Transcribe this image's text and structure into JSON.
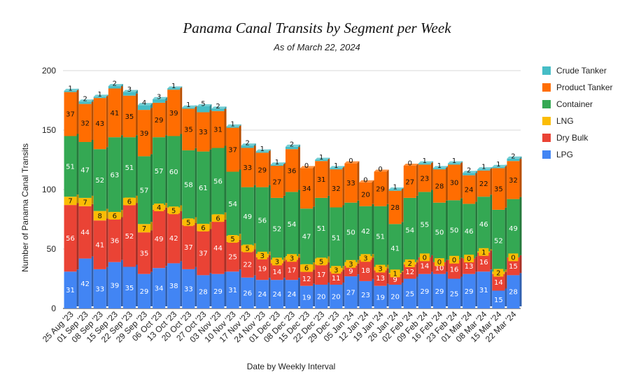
{
  "chart_data": {
    "type": "bar",
    "stacked": true,
    "title": "Panama Canal Transits by Segment per Week",
    "subtitle": "As of March 22, 2024",
    "xlabel": "Date by Weekly Interval",
    "ylabel": "Number of Panama Canal Transits",
    "ylim": [
      0,
      200
    ],
    "yticks": [
      0,
      50,
      100,
      150,
      200
    ],
    "grid": true,
    "legend_position": "right",
    "categories": [
      "25 Aug '23",
      "01 Sep '23",
      "08 Sep '23",
      "15 Sep '23",
      "22 Sep '23",
      "29 Sep '23",
      "06 Oct '23",
      "13 Oct '23",
      "20 Oct '23",
      "27 Oct '23",
      "03 Nov '23",
      "10 Nov '23",
      "17 Nov '23",
      "24 Nov '23",
      "01 Dec '23",
      "08 Dec '23",
      "15 Dec '23",
      "22 Dec '23",
      "29 Dec '23",
      "05 Jan '24",
      "12 Jan '24",
      "19 Jan '24",
      "26 Jan '24",
      "02 Feb '24",
      "09 Feb '24",
      "16 Feb '24",
      "23 Feb '24",
      "01 Mar '24",
      "08 Mar '24",
      "15 Mar '24",
      "22 Mar '24"
    ],
    "series": [
      {
        "name": "LPG",
        "color": "#4285f4",
        "values": [
          31,
          42,
          33,
          39,
          35,
          29,
          34,
          38,
          33,
          28,
          29,
          31,
          26,
          24,
          24,
          24,
          19,
          20,
          20,
          27,
          23,
          19,
          20,
          25,
          29,
          29,
          25,
          29,
          31,
          15,
          28
        ]
      },
      {
        "name": "Dry Bulk",
        "color": "#ea4335",
        "values": [
          56,
          44,
          41,
          36,
          52,
          35,
          49,
          42,
          37,
          37,
          44,
          25,
          22,
          19,
          14,
          17,
          12,
          17,
          11,
          9,
          18,
          13,
          9,
          12,
          14,
          10,
          16,
          13,
          16,
          14,
          15
        ]
      },
      {
        "name": "LNG",
        "color": "#fbbc04",
        "values": [
          7,
          7,
          8,
          6,
          6,
          7,
          4,
          5,
          5,
          6,
          6,
          5,
          5,
          3,
          3,
          3,
          6,
          5,
          3,
          3,
          3,
          3,
          1,
          2,
          0,
          0,
          0,
          0,
          1,
          2,
          0
        ]
      },
      {
        "name": "Container",
        "color": "#34a853",
        "values": [
          51,
          47,
          52,
          63,
          51,
          57,
          57,
          60,
          58,
          61,
          56,
          54,
          49,
          56,
          52,
          54,
          47,
          51,
          51,
          50,
          42,
          51,
          41,
          54,
          55,
          50,
          50,
          46,
          46,
          52,
          49
        ]
      },
      {
        "name": "Product Tanker",
        "color": "#ff6d01",
        "values": [
          37,
          32,
          43,
          41,
          35,
          39,
          29,
          39,
          35,
          33,
          31,
          37,
          33,
          29,
          27,
          36,
          34,
          31,
          32,
          33,
          20,
          29,
          28,
          27,
          23,
          28,
          30,
          24,
          22,
          35,
          32
        ]
      },
      {
        "name": "Crude Tanker",
        "color": "#46bdc6",
        "values": [
          1,
          2,
          1,
          2,
          3,
          4,
          3,
          1,
          1,
          5,
          2,
          1,
          2,
          1,
          1,
          2,
          0,
          1,
          1,
          0,
          0,
          0,
          1,
          0,
          1,
          1,
          1,
          2,
          1,
          1,
          2
        ]
      }
    ],
    "legend_order": [
      "Crude Tanker",
      "Product Tanker",
      "Container",
      "LNG",
      "Dry Bulk",
      "LPG"
    ]
  }
}
